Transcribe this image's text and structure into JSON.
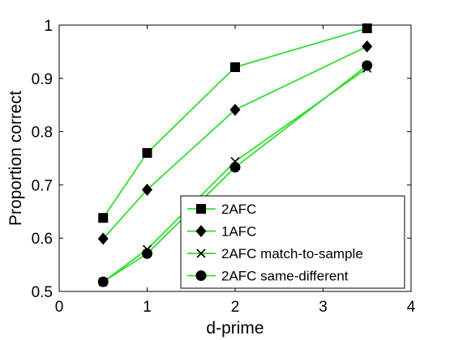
{
  "chart_data": {
    "type": "line",
    "title": "",
    "xlabel": "d-prime",
    "ylabel": "Proportion correct",
    "xlim": [
      0,
      4
    ],
    "ylim": [
      0.5,
      1
    ],
    "xticks": [
      0,
      1,
      2,
      3,
      4
    ],
    "yticks": [
      0.5,
      0.6,
      0.7,
      0.8,
      0.9,
      1
    ],
    "xtick_labels": [
      "0",
      "1",
      "2",
      "3",
      "4"
    ],
    "ytick_labels": [
      "0.5",
      "0.6",
      "0.7",
      "0.8",
      "0.9",
      "1"
    ],
    "grid": false,
    "legend_position": "bottom-right",
    "line_color": "#33dd33",
    "marker_color": "#000000",
    "series": [
      {
        "name": "2AFC",
        "marker": "square",
        "x": [
          0.5,
          1,
          2,
          3.5
        ],
        "y": [
          0.638,
          0.76,
          0.921,
          0.994
        ]
      },
      {
        "name": "1AFC",
        "marker": "diamond",
        "x": [
          0.5,
          1,
          2,
          3.5
        ],
        "y": [
          0.599,
          0.691,
          0.841,
          0.96
        ]
      },
      {
        "name": "2AFC match-to-sample",
        "marker": "x",
        "x": [
          0.5,
          1,
          2,
          3.5
        ],
        "y": [
          0.518,
          0.579,
          0.744,
          0.919
        ]
      },
      {
        "name": "2AFC same-different",
        "marker": "circle",
        "x": [
          0.5,
          1,
          2,
          3.5
        ],
        "y": [
          0.518,
          0.571,
          0.733,
          0.924
        ]
      }
    ]
  }
}
